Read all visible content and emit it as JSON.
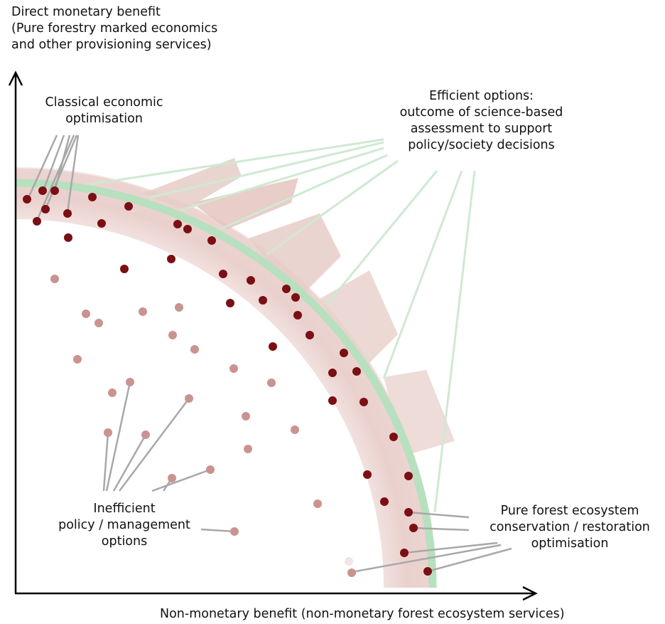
{
  "labels": {
    "y_axis": [
      "Direct monetary benefit",
      "(Pure forestry marked economics",
      "and other provisioning services)"
    ],
    "x_axis": "Non-monetary benefit (non-monetary forest ecosystem services)",
    "classical": [
      "Classical economic",
      "optimisation"
    ],
    "efficient": [
      "Efficient options:",
      "outcome of science-based",
      "assessment to support",
      "policy/society decisions"
    ],
    "inefficient": [
      "Inefficient",
      "policy / management",
      "options"
    ],
    "conservation": [
      "Pure forest ecosystem",
      "conservation / restoration",
      "optimisation"
    ]
  },
  "colors": {
    "frontier": "#b7e0bf",
    "efficient_dot": "#7a0f14",
    "inefficient_dot": "#c9938f",
    "leader_gray": "#a8a8a8",
    "leader_green": "#cfe9d3",
    "band": "#d8aaa3"
  }
}
